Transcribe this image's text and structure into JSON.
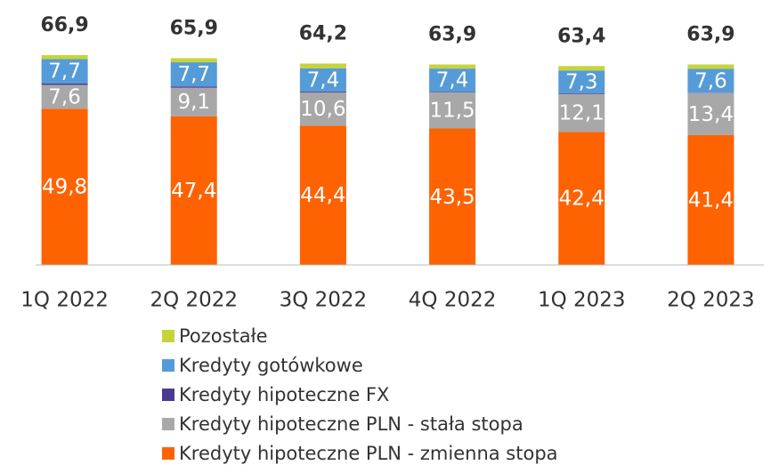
{
  "chart_data": {
    "type": "stacked_bar",
    "categories": [
      "1Q 2022",
      "2Q 2022",
      "3Q 2022",
      "4Q 2022",
      "1Q 2023",
      "2Q 2023"
    ],
    "series": [
      {
        "name": "Kredyty hipoteczne PLN - zmienna stopa",
        "color": "#ff6200",
        "values": [
          49.8,
          47.4,
          44.4,
          43.5,
          42.4,
          41.4
        ],
        "value_labels": [
          "49,8",
          "47,4",
          "44,4",
          "43,5",
          "42,4",
          "41,4"
        ]
      },
      {
        "name": "Kredyty hipoteczne PLN - stała stopa",
        "color": "#a8a8a8",
        "values": [
          7.6,
          9.1,
          10.6,
          11.5,
          12.1,
          13.4
        ],
        "value_labels": [
          "7,6",
          "9,1",
          "10,6",
          "11,5",
          "12,1",
          "13,4"
        ]
      },
      {
        "name": "Kredyty hipoteczne FX",
        "color": "#4b3b8f",
        "values": [
          0.5,
          0.4,
          0.3,
          0.2,
          0.2,
          0.1
        ]
      },
      {
        "name": "Kredyty gotówkowe",
        "color": "#559bd8",
        "values": [
          7.7,
          7.7,
          7.4,
          7.4,
          7.3,
          7.6
        ],
        "value_labels": [
          "7,7",
          "7,7",
          "7,4",
          "7,4",
          "7,3",
          "7,6"
        ]
      },
      {
        "name": "Pozostałe",
        "color": "#c6d43a",
        "values": [
          1.3,
          1.3,
          1.5,
          1.3,
          1.4,
          1.4
        ]
      }
    ],
    "totals": {
      "values": [
        66.9,
        65.9,
        64.2,
        63.9,
        63.4,
        63.9
      ],
      "value_labels": [
        "66,9",
        "65,9",
        "64,2",
        "63,9",
        "63,4",
        "63,9"
      ]
    },
    "ylim": [
      0,
      70
    ]
  }
}
